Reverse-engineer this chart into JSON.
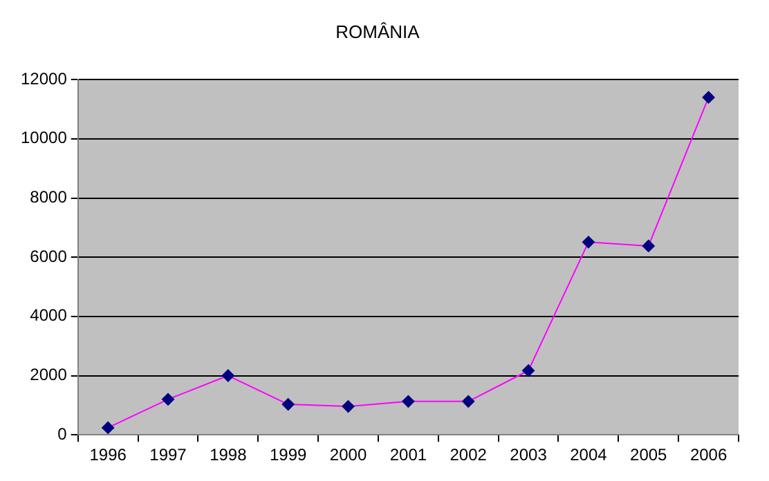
{
  "chart_data": {
    "type": "line",
    "title": "ROMÂNIA",
    "categories": [
      "1996",
      "1997",
      "1998",
      "1999",
      "2000",
      "2001",
      "2002",
      "2003",
      "2004",
      "2005",
      "2006"
    ],
    "series": [
      {
        "color": "#ff00ff",
        "values": [
          240,
          1200,
          2000,
          1030,
          960,
          1130,
          1130,
          2170,
          6510,
          6380,
          11400
        ]
      }
    ],
    "ylim": [
      0,
      12000
    ],
    "yticks": [
      0,
      2000,
      4000,
      6000,
      8000,
      10000,
      12000
    ],
    "grid": "y",
    "legend": false,
    "marker": "diamond",
    "line_style": "solid"
  }
}
